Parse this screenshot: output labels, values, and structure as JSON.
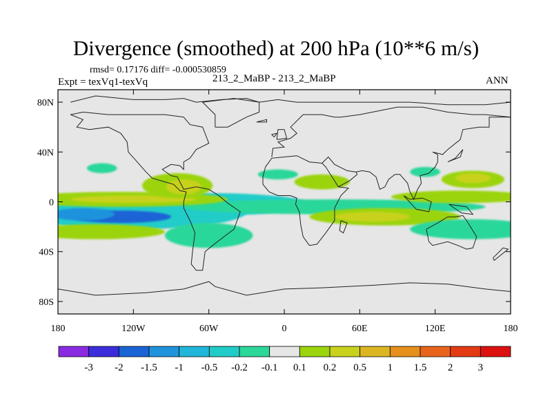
{
  "chart_data": {
    "type": "heatmap",
    "title": "Divergence (smoothed) at 200 hPa (10**6 m/s)",
    "stats_line": "rmsd= 0.17176 diff= -0.000530859",
    "experiment_line": "Expt = texVq1-texVq",
    "case_line": "213_2_MaBP - 213_2_MaBP",
    "season": "ANN",
    "x_ticks": [
      "180",
      "120W",
      "60W",
      "0",
      "60E",
      "120E",
      "180"
    ],
    "x_tick_values": [
      -180,
      -120,
      -60,
      0,
      60,
      120,
      180
    ],
    "y_ticks": [
      "80N",
      "40N",
      "0",
      "40S",
      "80S"
    ],
    "y_tick_values": [
      80,
      40,
      0,
      -40,
      -80
    ],
    "xlim": [
      -180,
      180
    ],
    "ylim": [
      -90,
      90
    ],
    "colorbar_labels": [
      "-3",
      "-2",
      "-1.5",
      "-1",
      "-0.5",
      "-0.2",
      "-0.1",
      "0.1",
      "0.2",
      "0.5",
      "1",
      "1.5",
      "2",
      "3"
    ],
    "colorbar_colors": [
      "#8a2be2",
      "#3c2ddc",
      "#1b64d6",
      "#1f93dc",
      "#1fb6d9",
      "#20ccc8",
      "#2cd79a",
      "#e6e6e6",
      "#9bd40c",
      "#c8d21d",
      "#dcb622",
      "#e58f1d",
      "#e9641b",
      "#e33a14",
      "#dd1010"
    ],
    "colors": {
      "neutral": "#e6e6e6",
      "coast": "#222222",
      "neg_light": "#2cd79a",
      "neg_mid": "#20ccc8",
      "neg_strong": "#1fb6d9",
      "neg_stronger": "#1f93dc",
      "neg_max": "#1b64d6",
      "pos_light": "#9bd40c",
      "pos_mid": "#c8d21d",
      "pos_strong": "#dcb622",
      "pos_max": "#e58f1d"
    },
    "anomaly_blobs": [
      {
        "lon": -120,
        "lat": -8,
        "rlon": 90,
        "rlat": 14,
        "level": "neg_mid"
      },
      {
        "lon": -60,
        "lat": -2,
        "rlon": 80,
        "rlat": 9,
        "level": "neg_mid"
      },
      {
        "lon": 40,
        "lat": -4,
        "rlon": 120,
        "rlat": 6,
        "level": "neg_light"
      },
      {
        "lon": -130,
        "lat": -12,
        "rlon": 40,
        "rlat": 5,
        "level": "neg_max"
      },
      {
        "lon": -160,
        "lat": -10,
        "rlon": 25,
        "rlat": 5,
        "level": "neg_stronger"
      },
      {
        "lon": -130,
        "lat": 2,
        "rlon": 85,
        "rlat": 6,
        "level": "pos_light"
      },
      {
        "lon": -120,
        "lat": 2,
        "rlon": 50,
        "rlat": 3,
        "level": "pos_mid"
      },
      {
        "lon": -150,
        "lat": -24,
        "rlon": 55,
        "rlat": 6,
        "level": "pos_light"
      },
      {
        "lon": -85,
        "lat": 13,
        "rlon": 28,
        "rlat": 10,
        "level": "pos_light"
      },
      {
        "lon": -80,
        "lat": 12,
        "rlon": 14,
        "rlat": 6,
        "level": "pos_mid"
      },
      {
        "lon": -60,
        "lat": -27,
        "rlon": 35,
        "rlat": 10,
        "level": "neg_light"
      },
      {
        "lon": 30,
        "lat": 16,
        "rlon": 22,
        "rlat": 6,
        "level": "pos_light"
      },
      {
        "lon": 80,
        "lat": -12,
        "rlon": 60,
        "rlat": 7,
        "level": "pos_light"
      },
      {
        "lon": 70,
        "lat": -12,
        "rlon": 30,
        "rlat": 4,
        "level": "pos_mid"
      },
      {
        "lon": 150,
        "lat": 18,
        "rlon": 25,
        "rlat": 7,
        "level": "pos_light"
      },
      {
        "lon": 150,
        "lat": 19,
        "rlon": 14,
        "rlat": 4,
        "level": "pos_mid"
      },
      {
        "lon": 140,
        "lat": 4,
        "rlon": 55,
        "rlat": 5,
        "level": "pos_light"
      },
      {
        "lon": 150,
        "lat": -22,
        "rlon": 50,
        "rlat": 8,
        "level": "neg_light"
      },
      {
        "lon": -145,
        "lat": 27,
        "rlon": 12,
        "rlat": 4,
        "level": "neg_light"
      },
      {
        "lon": -5,
        "lat": 22,
        "rlon": 16,
        "rlat": 4,
        "level": "neg_light"
      },
      {
        "lon": 112,
        "lat": 24,
        "rlon": 12,
        "rlat": 4,
        "level": "neg_light"
      }
    ],
    "coastlines": [
      [
        [
          -170,
          80
        ],
        [
          -150,
          85
        ],
        [
          -120,
          82
        ],
        [
          -95,
          82
        ],
        [
          -80,
          83
        ],
        [
          -70,
          80
        ],
        [
          -50,
          82
        ],
        [
          -30,
          83
        ],
        [
          -20,
          80
        ],
        [
          -5,
          82
        ],
        [
          10,
          80
        ],
        [
          20,
          80
        ],
        [
          50,
          80
        ],
        [
          80,
          80
        ],
        [
          100,
          80
        ],
        [
          130,
          78
        ],
        [
          160,
          78
        ],
        [
          180,
          80
        ]
      ],
      [
        [
          -170,
          70
        ],
        [
          -160,
          66
        ],
        [
          -165,
          60
        ],
        [
          -155,
          58
        ],
        [
          -140,
          60
        ],
        [
          -130,
          55
        ],
        [
          -125,
          48
        ],
        [
          -124,
          40
        ],
        [
          -117,
          32
        ],
        [
          -110,
          24
        ],
        [
          -105,
          19
        ],
        [
          -95,
          16
        ],
        [
          -88,
          14
        ],
        [
          -83,
          9
        ],
        [
          -78,
          8
        ],
        [
          -80,
          0
        ],
        [
          -80,
          -5
        ],
        [
          -75,
          -15
        ],
        [
          -71,
          -25
        ],
        [
          -73,
          -40
        ],
        [
          -74,
          -50
        ],
        [
          -70,
          -55
        ],
        [
          -65,
          -55
        ],
        [
          -63,
          -40
        ],
        [
          -57,
          -35
        ],
        [
          -48,
          -28
        ],
        [
          -40,
          -22
        ],
        [
          -35,
          -8
        ],
        [
          -45,
          -1
        ],
        [
          -52,
          5
        ],
        [
          -60,
          10
        ],
        [
          -70,
          12
        ],
        [
          -80,
          10
        ],
        [
          -85,
          20
        ],
        [
          -90,
          21
        ],
        [
          -97,
          26
        ],
        [
          -90,
          30
        ],
        [
          -83,
          29
        ],
        [
          -80,
          26
        ],
        [
          -80,
          32
        ],
        [
          -75,
          35
        ],
        [
          -70,
          42
        ],
        [
          -66,
          44
        ],
        [
          -60,
          47
        ],
        [
          -65,
          60
        ],
        [
          -75,
          62
        ],
        [
          -80,
          68
        ],
        [
          -95,
          70
        ],
        [
          -110,
          70
        ],
        [
          -125,
          70
        ],
        [
          -140,
          70
        ],
        [
          -160,
          72
        ],
        [
          -170,
          70
        ]
      ],
      [
        [
          -55,
          60
        ],
        [
          -45,
          60
        ],
        [
          -30,
          68
        ],
        [
          -20,
          72
        ],
        [
          -20,
          80
        ],
        [
          -40,
          83
        ],
        [
          -65,
          80
        ],
        [
          -60,
          75
        ],
        [
          -55,
          70
        ],
        [
          -55,
          60
        ]
      ],
      [
        [
          -15,
          28
        ],
        [
          -17,
          20
        ],
        [
          -17,
          14
        ],
        [
          -12,
          8
        ],
        [
          -5,
          5
        ],
        [
          5,
          5
        ],
        [
          10,
          3
        ],
        [
          9,
          -2
        ],
        [
          12,
          -8
        ],
        [
          13,
          -18
        ],
        [
          15,
          -28
        ],
        [
          20,
          -35
        ],
        [
          26,
          -34
        ],
        [
          33,
          -25
        ],
        [
          40,
          -15
        ],
        [
          40,
          -5
        ],
        [
          45,
          5
        ],
        [
          51,
          11
        ],
        [
          43,
          12
        ],
        [
          38,
          20
        ],
        [
          33,
          28
        ],
        [
          30,
          31
        ],
        [
          20,
          32
        ],
        [
          10,
          37
        ],
        [
          0,
          36
        ],
        [
          -10,
          35
        ],
        [
          -15,
          28
        ]
      ],
      [
        [
          -10,
          36
        ],
        [
          -9,
          43
        ],
        [
          0,
          44
        ],
        [
          -5,
          48
        ],
        [
          5,
          51
        ],
        [
          10,
          55
        ],
        [
          5,
          60
        ],
        [
          15,
          70
        ],
        [
          30,
          70
        ],
        [
          40,
          68
        ],
        [
          45,
          68
        ],
        [
          60,
          70
        ],
        [
          70,
          72
        ],
        [
          90,
          76
        ],
        [
          110,
          76
        ],
        [
          130,
          72
        ],
        [
          150,
          70
        ],
        [
          160,
          70
        ],
        [
          180,
          68
        ]
      ],
      [
        [
          30,
          31
        ],
        [
          35,
          36
        ],
        [
          40,
          30
        ],
        [
          50,
          25
        ],
        [
          57,
          24
        ],
        [
          58,
          22
        ],
        [
          52,
          17
        ],
        [
          43,
          12
        ]
      ],
      [
        [
          57,
          24
        ],
        [
          62,
          25
        ],
        [
          68,
          24
        ],
        [
          73,
          20
        ],
        [
          76,
          10
        ],
        [
          80,
          12
        ],
        [
          83,
          18
        ],
        [
          88,
          22
        ],
        [
          92,
          22
        ],
        [
          98,
          15
        ],
        [
          100,
          8
        ],
        [
          103,
          2
        ],
        [
          106,
          10
        ],
        [
          109,
          15
        ],
        [
          108,
          21
        ],
        [
          115,
          23
        ],
        [
          120,
          28
        ],
        [
          122,
          32
        ],
        [
          122,
          38
        ],
        [
          118,
          40
        ],
        [
          126,
          38
        ],
        [
          130,
          42
        ],
        [
          140,
          50
        ],
        [
          142,
          58
        ],
        [
          155,
          60
        ],
        [
          163,
          60
        ],
        [
          163,
          68
        ],
        [
          180,
          68
        ]
      ],
      [
        [
          45,
          -15
        ],
        [
          50,
          -17
        ],
        [
          47,
          -25
        ],
        [
          44,
          -23
        ],
        [
          45,
          -15
        ]
      ],
      [
        [
          113,
          -22
        ],
        [
          115,
          -32
        ],
        [
          118,
          -35
        ],
        [
          130,
          -32
        ],
        [
          138,
          -35
        ],
        [
          145,
          -38
        ],
        [
          150,
          -37
        ],
        [
          153,
          -28
        ],
        [
          145,
          -15
        ],
        [
          142,
          -11
        ],
        [
          136,
          -12
        ],
        [
          130,
          -12
        ],
        [
          122,
          -17
        ],
        [
          113,
          -22
        ]
      ],
      [
        [
          -180,
          -70
        ],
        [
          -150,
          -75
        ],
        [
          -110,
          -73
        ],
        [
          -80,
          -70
        ],
        [
          -60,
          -64
        ],
        [
          -55,
          -68
        ],
        [
          -30,
          -75
        ],
        [
          0,
          -70
        ],
        [
          30,
          -69
        ],
        [
          70,
          -67
        ],
        [
          100,
          -65
        ],
        [
          130,
          -66
        ],
        [
          160,
          -70
        ],
        [
          180,
          -72
        ]
      ],
      [
        [
          95,
          5
        ],
        [
          105,
          -6
        ],
        [
          115,
          -8
        ],
        [
          117,
          0
        ],
        [
          110,
          3
        ],
        [
          100,
          2
        ],
        [
          95,
          5
        ]
      ],
      [
        [
          130,
          32
        ],
        [
          140,
          36
        ],
        [
          142,
          42
        ],
        [
          136,
          35
        ],
        [
          130,
          32
        ]
      ],
      [
        [
          -6,
          50
        ],
        [
          2,
          51
        ],
        [
          0,
          58
        ],
        [
          -5,
          58
        ],
        [
          -6,
          50
        ]
      ],
      [
        [
          -22,
          64
        ],
        [
          -14,
          66
        ],
        [
          -14,
          64
        ],
        [
          -22,
          64
        ]
      ],
      [
        [
          -8,
          52
        ],
        [
          -6,
          55
        ],
        [
          -10,
          54
        ],
        [
          -8,
          52
        ]
      ],
      [
        [
          166,
          -45
        ],
        [
          174,
          -37
        ],
        [
          178,
          -38
        ],
        [
          167,
          -47
        ],
        [
          166,
          -45
        ]
      ],
      [
        [
          131,
          -2
        ],
        [
          145,
          -4
        ],
        [
          150,
          -10
        ],
        [
          141,
          -9
        ],
        [
          131,
          -2
        ]
      ]
    ]
  }
}
